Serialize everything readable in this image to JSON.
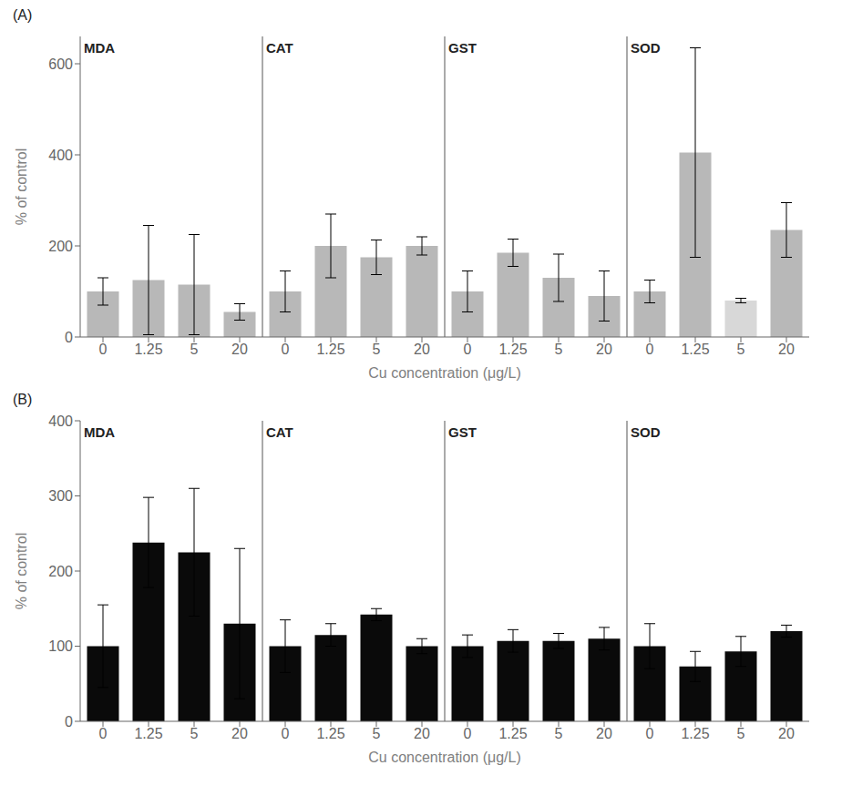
{
  "chart_data": [
    {
      "type": "bar",
      "title": "(A)",
      "xlabel": "Cu concentration (μg/L)",
      "ylabel": "% of control",
      "groups": [
        "MDA",
        "CAT",
        "GST",
        "SOD"
      ],
      "categories": [
        "0",
        "1.25",
        "5",
        "20",
        "0",
        "1.25",
        "5",
        "20",
        "0",
        "1.25",
        "5",
        "20",
        "0",
        "1.25",
        "5",
        "20"
      ],
      "values": [
        100,
        125,
        115,
        55,
        100,
        200,
        175,
        200,
        100,
        185,
        130,
        90,
        100,
        405,
        80,
        235
      ],
      "errors": [
        30,
        120,
        110,
        18,
        45,
        70,
        38,
        20,
        45,
        30,
        52,
        55,
        25,
        230,
        5,
        60
      ],
      "colors": [
        "#b8b8b8",
        "#b8b8b8",
        "#b8b8b8",
        "#b8b8b8",
        "#b8b8b8",
        "#b8b8b8",
        "#b8b8b8",
        "#b8b8b8",
        "#b8b8b8",
        "#b8b8b8",
        "#b8b8b8",
        "#b8b8b8",
        "#b8b8b8",
        "#b8b8b8",
        "#d8d8d8",
        "#b8b8b8"
      ],
      "ylim": [
        0,
        660
      ],
      "yticks": [
        0,
        200,
        400,
        600
      ],
      "grid": false
    },
    {
      "type": "bar",
      "title": "(B)",
      "xlabel": "Cu concentration (μg/L)",
      "ylabel": "% of control",
      "groups": [
        "MDA",
        "CAT",
        "GST",
        "SOD"
      ],
      "categories": [
        "0",
        "1.25",
        "5",
        "20",
        "0",
        "1.25",
        "5",
        "20",
        "0",
        "1.25",
        "5",
        "20",
        "0",
        "1.25",
        "5",
        "20"
      ],
      "values": [
        100,
        238,
        225,
        130,
        100,
        115,
        142,
        100,
        100,
        107,
        107,
        110,
        100,
        73,
        93,
        120
      ],
      "errors": [
        55,
        60,
        85,
        100,
        35,
        15,
        8,
        10,
        15,
        15,
        10,
        15,
        30,
        20,
        20,
        8
      ],
      "color": "#0a0a0a",
      "ylim": [
        0,
        400
      ],
      "yticks": [
        0,
        100,
        200,
        300,
        400
      ],
      "grid": false
    }
  ]
}
